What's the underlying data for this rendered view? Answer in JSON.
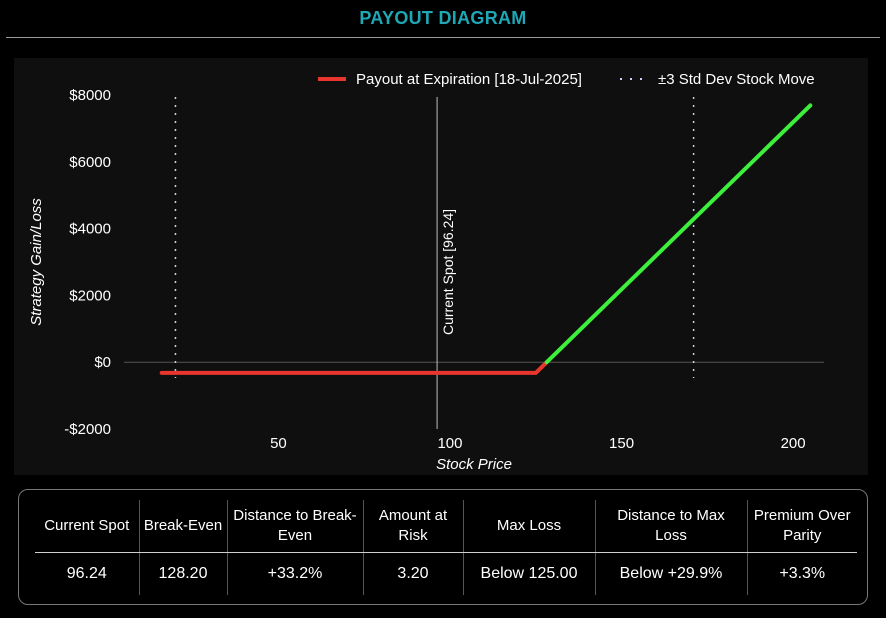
{
  "page": {
    "title": "PAYOUT DIAGRAM"
  },
  "chart_data": {
    "type": "line",
    "xlabel": "Stock Price",
    "ylabel": "Strategy Gain/Loss",
    "xlim": [
      5,
      209
    ],
    "ylim": [
      -2000,
      8000
    ],
    "x_ticks": [
      {
        "value": 50,
        "label": "50"
      },
      {
        "value": 100,
        "label": "100"
      },
      {
        "value": 150,
        "label": "150"
      },
      {
        "value": 200,
        "label": "200"
      }
    ],
    "y_ticks": [
      {
        "value": 8000,
        "label": "$8000"
      },
      {
        "value": 6000,
        "label": "$6000"
      },
      {
        "value": 4000,
        "label": "$4000"
      },
      {
        "value": 2000,
        "label": "$2000"
      },
      {
        "value": 0,
        "label": "$0"
      },
      {
        "value": -2000,
        "label": "-$2000"
      }
    ],
    "series": [
      {
        "name": "Payout at Expiration [18-Jul-2025]",
        "color": "#e8352e",
        "points": [
          [
            16,
            -320
          ],
          [
            125,
            -320
          ],
          [
            128.2,
            0
          ]
        ]
      },
      {
        "color": "#3cf03c",
        "points": [
          [
            128.2,
            0
          ],
          [
            205,
            7690
          ]
        ]
      }
    ],
    "std_dev_lines": {
      "name": "±3 Std Dev Stock Move",
      "x": [
        20,
        171
      ],
      "color": "#c8d0ff"
    },
    "spot_line": {
      "x": 96.24,
      "label": "Current Spot [96.24]",
      "color": "#bdbdbd"
    },
    "zero_line": {
      "y": 0,
      "color": "#555555"
    },
    "legend_position": "top-right",
    "grid": false
  },
  "stats": {
    "headers": [
      "Current Spot",
      "Break-Even",
      "Distance to Break-Even",
      "Amount at Risk",
      "Max Loss",
      "Distance to Max Loss",
      "Premium Over Parity"
    ],
    "values": [
      "96.24",
      "128.20",
      "+33.2%",
      "3.20",
      "Below 125.00",
      "Below +29.9%",
      "+3.3%"
    ]
  }
}
